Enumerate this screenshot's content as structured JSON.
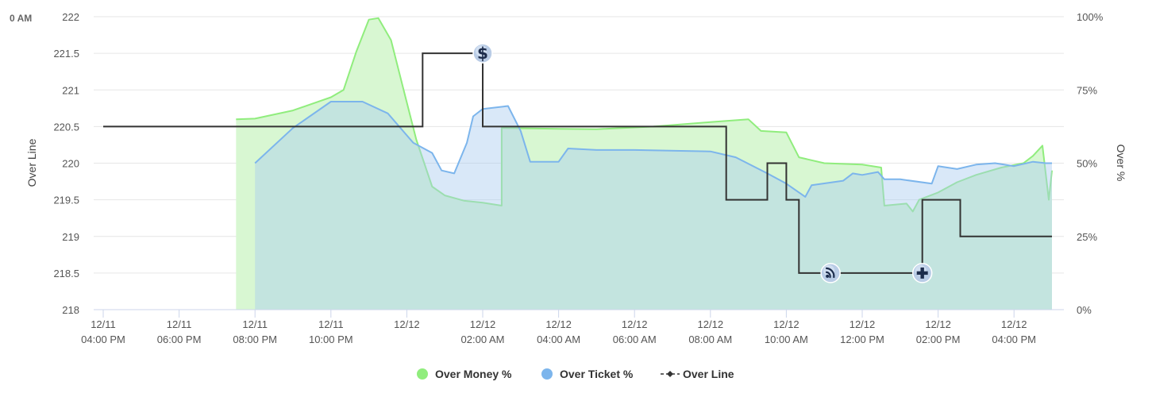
{
  "corner_label": "0 AM",
  "chart_data": {
    "type": "line",
    "y_left": {
      "label": "Over Line",
      "ticks": [
        "222",
        "221.5",
        "221",
        "220.5",
        "220",
        "219.5",
        "219",
        "218.5",
        "218"
      ],
      "range": [
        218,
        222
      ]
    },
    "y_right": {
      "label": "Over %",
      "ticks": [
        "100%",
        "75%",
        "50%",
        "25%",
        "0%"
      ],
      "range": [
        0,
        100
      ]
    },
    "x_range": [
      "2023-12-11 16:00",
      "2023-12-12 17:00"
    ],
    "x_ticks": [
      {
        "t": "2023-12-11 16:00",
        "date": "12/11",
        "time": "04:00 PM"
      },
      {
        "t": "2023-12-11 18:00",
        "date": "12/11",
        "time": "06:00 PM"
      },
      {
        "t": "2023-12-11 20:00",
        "date": "12/11",
        "time": "08:00 PM"
      },
      {
        "t": "2023-12-11 22:00",
        "date": "12/11",
        "time": "10:00 PM"
      },
      {
        "t": "2023-12-12 00:00",
        "date": "12/12",
        "time": ""
      },
      {
        "t": "2023-12-12 02:00",
        "date": "12/12",
        "time": "02:00 AM"
      },
      {
        "t": "2023-12-12 04:00",
        "date": "12/12",
        "time": "04:00 AM"
      },
      {
        "t": "2023-12-12 06:00",
        "date": "12/12",
        "time": "06:00 AM"
      },
      {
        "t": "2023-12-12 08:00",
        "date": "12/12",
        "time": "08:00 AM"
      },
      {
        "t": "2023-12-12 10:00",
        "date": "12/12",
        "time": "10:00 AM"
      },
      {
        "t": "2023-12-12 12:00",
        "date": "12/12",
        "time": "12:00 PM"
      },
      {
        "t": "2023-12-12 14:00",
        "date": "12/12",
        "time": "02:00 PM"
      },
      {
        "t": "2023-12-12 16:00",
        "date": "12/12",
        "time": "04:00 PM"
      }
    ],
    "grid": true,
    "legend_position": "bottom-center",
    "series": [
      {
        "name": "Over Money %",
        "type": "area",
        "axis": "right",
        "color": "#90ed7d",
        "fill": "#d8f7d2",
        "points": [
          [
            "2023-12-11 19:30",
            0
          ],
          [
            "2023-12-11 19:30",
            65
          ],
          [
            "2023-12-11 20:00",
            65.2
          ],
          [
            "2023-12-11 21:00",
            68
          ],
          [
            "2023-12-11 22:00",
            72.5
          ],
          [
            "2023-12-11 22:20",
            75
          ],
          [
            "2023-12-11 22:40",
            88
          ],
          [
            "2023-12-11 23:00",
            99
          ],
          [
            "2023-12-11 23:15",
            99.5
          ],
          [
            "2023-12-11 23:35",
            92
          ],
          [
            "2023-12-11 23:55",
            75
          ],
          [
            "2023-12-12 00:15",
            58
          ],
          [
            "2023-12-12 00:40",
            42
          ],
          [
            "2023-12-12 01:00",
            39
          ],
          [
            "2023-12-12 01:30",
            37.2
          ],
          [
            "2023-12-12 02:00",
            36.5
          ],
          [
            "2023-12-12 02:30",
            35.5
          ],
          [
            "2023-12-12 02:30",
            62
          ],
          [
            "2023-12-12 04:00",
            61.7
          ],
          [
            "2023-12-12 05:00",
            61.6
          ],
          [
            "2023-12-12 06:30",
            62.5
          ],
          [
            "2023-12-12 08:00",
            64
          ],
          [
            "2023-12-12 09:00",
            65
          ],
          [
            "2023-12-12 09:20",
            61
          ],
          [
            "2023-12-12 10:00",
            60.5
          ],
          [
            "2023-12-12 10:20",
            52
          ],
          [
            "2023-12-12 11:00",
            50
          ],
          [
            "2023-12-12 12:00",
            49.5
          ],
          [
            "2023-12-12 12:30",
            48.5
          ],
          [
            "2023-12-12 12:35",
            35.5
          ],
          [
            "2023-12-12 13:10",
            36.2
          ],
          [
            "2023-12-12 13:20",
            33.5
          ],
          [
            "2023-12-12 13:30",
            37.5
          ],
          [
            "2023-12-12 14:00",
            40
          ],
          [
            "2023-12-12 14:30",
            43.5
          ],
          [
            "2023-12-12 15:00",
            46
          ],
          [
            "2023-12-12 15:40",
            48.5
          ],
          [
            "2023-12-12 16:15",
            50
          ],
          [
            "2023-12-12 16:30",
            52.5
          ],
          [
            "2023-12-12 16:45",
            56
          ],
          [
            "2023-12-12 16:55",
            37.5
          ],
          [
            "2023-12-12 17:00",
            47.5
          ],
          [
            "2023-12-12 17:00",
            0
          ]
        ]
      },
      {
        "name": "Over Ticket %",
        "type": "area",
        "axis": "right",
        "color": "#7cb5ec",
        "fill": "rgba(170,205,240,0.45)",
        "points": [
          [
            "2023-12-11 20:00",
            0
          ],
          [
            "2023-12-11 20:00",
            50
          ],
          [
            "2023-12-11 21:00",
            62
          ],
          [
            "2023-12-11 22:00",
            71
          ],
          [
            "2023-12-11 22:50",
            71
          ],
          [
            "2023-12-11 23:30",
            67
          ],
          [
            "2023-12-12 00:10",
            57
          ],
          [
            "2023-12-12 00:40",
            53.5
          ],
          [
            "2023-12-12 00:55",
            47.5
          ],
          [
            "2023-12-12 01:15",
            46.5
          ],
          [
            "2023-12-12 01:35",
            57
          ],
          [
            "2023-12-12 01:45",
            66
          ],
          [
            "2023-12-12 02:00",
            68.5
          ],
          [
            "2023-12-12 02:40",
            69.5
          ],
          [
            "2023-12-12 03:00",
            61
          ],
          [
            "2023-12-12 03:15",
            50.5
          ],
          [
            "2023-12-12 04:00",
            50.5
          ],
          [
            "2023-12-12 04:15",
            55
          ],
          [
            "2023-12-12 05:00",
            54.5
          ],
          [
            "2023-12-12 06:00",
            54.5
          ],
          [
            "2023-12-12 08:00",
            54
          ],
          [
            "2023-12-12 08:40",
            52
          ],
          [
            "2023-12-12 09:30",
            46.5
          ],
          [
            "2023-12-12 10:00",
            43
          ],
          [
            "2023-12-12 10:30",
            38.5
          ],
          [
            "2023-12-12 10:40",
            42.5
          ],
          [
            "2023-12-12 11:30",
            44
          ],
          [
            "2023-12-12 11:45",
            46.5
          ],
          [
            "2023-12-12 12:00",
            46
          ],
          [
            "2023-12-12 12:25",
            47
          ],
          [
            "2023-12-12 12:35",
            44.5
          ],
          [
            "2023-12-12 13:00",
            44.5
          ],
          [
            "2023-12-12 13:50",
            43
          ],
          [
            "2023-12-12 14:00",
            49
          ],
          [
            "2023-12-12 14:30",
            48
          ],
          [
            "2023-12-12 15:00",
            49.5
          ],
          [
            "2023-12-12 15:30",
            50
          ],
          [
            "2023-12-12 16:00",
            49
          ],
          [
            "2023-12-12 16:30",
            50.5
          ],
          [
            "2023-12-12 16:50",
            50
          ],
          [
            "2023-12-12 17:00",
            50
          ],
          [
            "2023-12-12 17:00",
            0
          ]
        ]
      },
      {
        "name": "Over Line",
        "type": "step",
        "axis": "left",
        "color": "#333333",
        "points": [
          [
            "2023-12-11 16:00",
            220.5
          ],
          [
            "2023-12-12 00:25",
            220.5
          ],
          [
            "2023-12-12 00:25",
            221.5
          ],
          [
            "2023-12-12 02:00",
            221.5
          ],
          [
            "2023-12-12 02:00",
            220.5
          ],
          [
            "2023-12-12 08:25",
            220.5
          ],
          [
            "2023-12-12 08:25",
            219.5
          ],
          [
            "2023-12-12 09:30",
            219.5
          ],
          [
            "2023-12-12 09:30",
            220
          ],
          [
            "2023-12-12 10:00",
            220
          ],
          [
            "2023-12-12 10:00",
            219.5
          ],
          [
            "2023-12-12 10:20",
            219.5
          ],
          [
            "2023-12-12 10:20",
            218.5
          ],
          [
            "2023-12-12 13:35",
            218.5
          ],
          [
            "2023-12-12 13:35",
            219.5
          ],
          [
            "2023-12-12 14:35",
            219.5
          ],
          [
            "2023-12-12 14:35",
            219
          ],
          [
            "2023-12-12 17:00",
            219
          ]
        ]
      }
    ],
    "markers": [
      {
        "name": "dollar-marker",
        "t": "2023-12-12 02:00",
        "y": 221.5,
        "glyph": "$"
      },
      {
        "name": "feed-marker",
        "t": "2023-12-12 11:10",
        "y": 218.5,
        "glyph": "rss"
      },
      {
        "name": "plus-marker",
        "t": "2023-12-12 13:35",
        "y": 218.5,
        "glyph": "+"
      }
    ],
    "legend": [
      "Over Money %",
      "Over Ticket %",
      "Over Line"
    ]
  }
}
